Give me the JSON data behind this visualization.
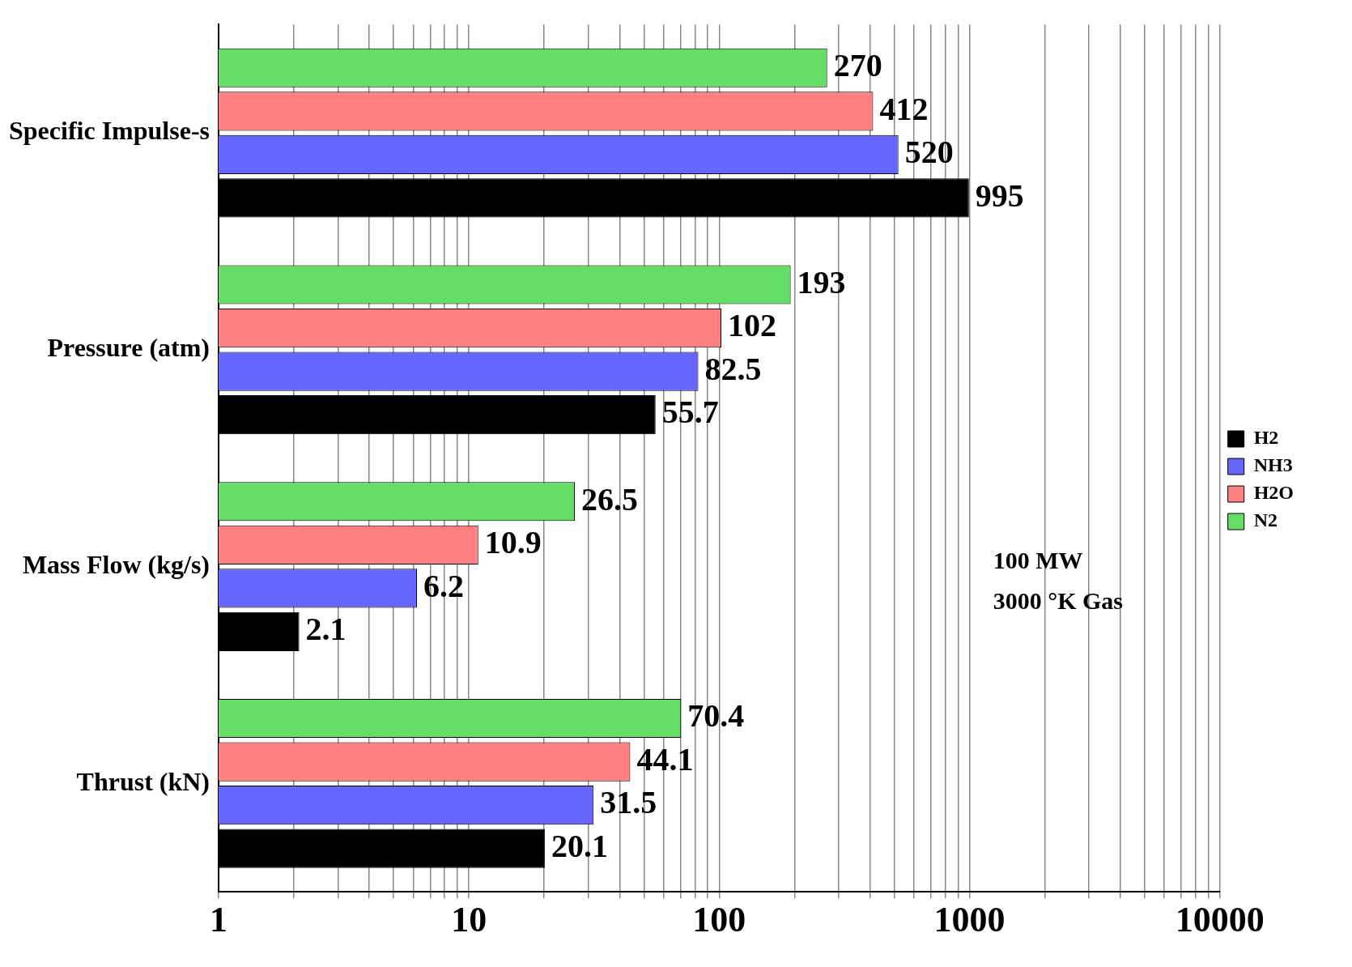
{
  "chart_data": {
    "type": "bar",
    "orientation": "horizontal",
    "categories": [
      "Specific Impulse-s",
      "Pressure (atm)",
      "Mass Flow (kg/s)",
      "Thrust (kN)"
    ],
    "series": [
      {
        "name": "H2",
        "color": "#000000",
        "values": [
          995,
          55.7,
          2.1,
          20.1
        ]
      },
      {
        "name": "NH3",
        "color": "#6666ff",
        "values": [
          520,
          82.5,
          6.2,
          31.5
        ]
      },
      {
        "name": "H2O",
        "color": "#ff8080",
        "values": [
          412,
          102,
          10.9,
          44.1
        ]
      },
      {
        "name": "N2",
        "color": "#66dd66",
        "values": [
          270,
          193,
          26.5,
          70.4
        ]
      }
    ],
    "log": "x",
    "xlim": [
      1,
      10000
    ],
    "xticks": [
      1,
      {
        "value": 2,
        "label": null
      },
      {
        "value": 3,
        "label": null
      },
      {
        "value": 4,
        "label": null
      },
      {
        "value": 5,
        "label": null
      },
      {
        "value": 6,
        "label": null
      },
      {
        "value": 7,
        "label": null
      },
      {
        "value": 8,
        "label": null
      },
      {
        "value": 9,
        "label": null
      },
      10,
      {
        "value": 20,
        "label": null
      },
      {
        "value": 30,
        "label": null
      },
      {
        "value": 40,
        "label": null
      },
      {
        "value": 50,
        "label": null
      },
      {
        "value": 60,
        "label": null
      },
      {
        "value": 70,
        "label": null
      },
      {
        "value": 80,
        "label": null
      },
      {
        "value": 90,
        "label": null
      },
      100,
      {
        "value": 200,
        "label": null
      },
      {
        "value": 300,
        "label": null
      },
      {
        "value": 400,
        "label": null
      },
      {
        "value": 500,
        "label": null
      },
      {
        "value": 600,
        "label": null
      },
      {
        "value": 700,
        "label": null
      },
      {
        "value": 800,
        "label": null
      },
      {
        "value": 900,
        "label": null
      },
      1000,
      {
        "value": 2000,
        "label": null
      },
      {
        "value": 3000,
        "label": null
      },
      {
        "value": 4000,
        "label": null
      },
      {
        "value": 5000,
        "label": null
      },
      {
        "value": 6000,
        "label": null
      },
      {
        "value": 7000,
        "label": null
      },
      {
        "value": 8000,
        "label": null
      },
      {
        "value": 9000,
        "label": null
      },
      10000
    ],
    "grid": "x",
    "legend": "right",
    "data_labels": true,
    "annotations": [
      "100 MW",
      "3000 °K Gas"
    ]
  }
}
